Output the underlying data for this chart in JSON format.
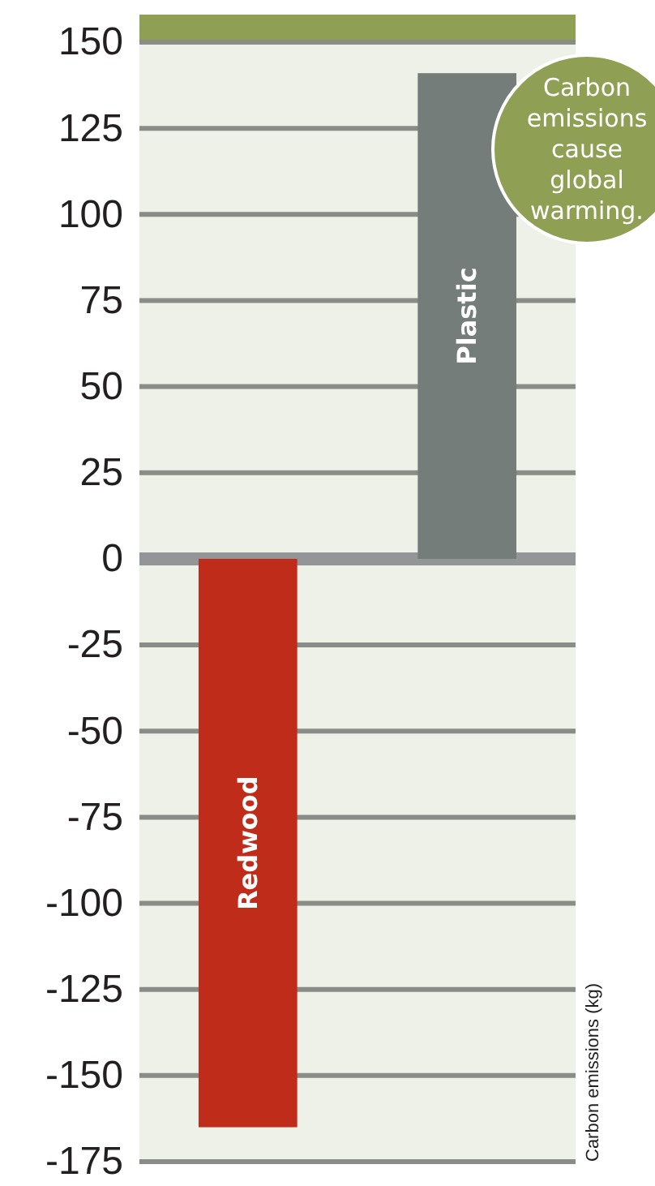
{
  "chart_data": {
    "type": "bar",
    "categories": [
      "Redwood",
      "Plastic"
    ],
    "values": [
      -165,
      141
    ],
    "colors": [
      "#bf2c19",
      "#747d79"
    ],
    "ylim": [
      -175,
      158
    ],
    "yticks": [
      -175,
      -150,
      -125,
      -100,
      -75,
      -50,
      -25,
      0,
      25,
      50,
      75,
      100,
      125,
      150
    ],
    "grid": "y",
    "ylabel": "Carbon emissions (kg)",
    "bands": [
      {
        "axis": "y",
        "from": 150,
        "to": 158,
        "color": "#8fa055"
      }
    ],
    "annotations": [
      "Carbon emissions cause global warming."
    ]
  }
}
